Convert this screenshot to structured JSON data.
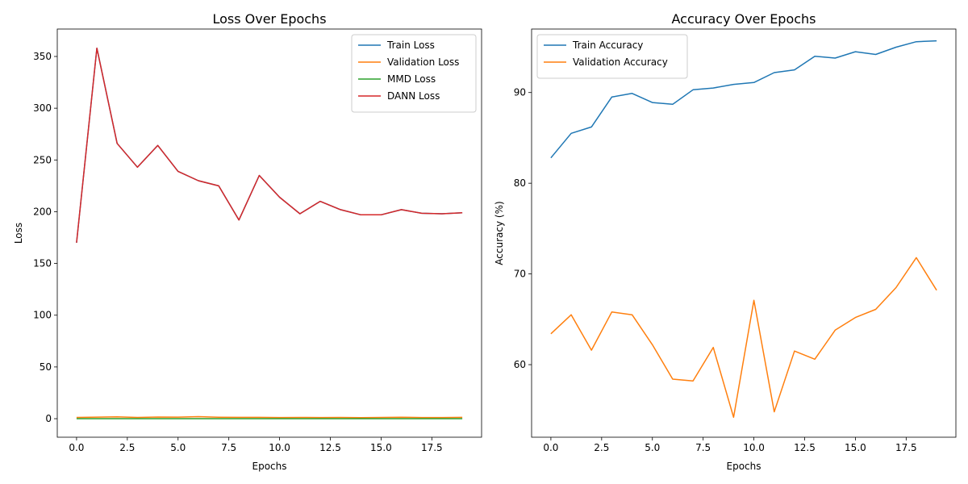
{
  "chart_data": [
    {
      "type": "line",
      "title": "Loss Over Epochs",
      "xlabel": "Epochs",
      "ylabel": "Loss",
      "xlim": [
        -0.95,
        19.95
      ],
      "ylim": [
        -17.9,
        376.5
      ],
      "x": [
        0,
        1,
        2,
        3,
        4,
        5,
        6,
        7,
        8,
        9,
        10,
        11,
        12,
        13,
        14,
        15,
        16,
        17,
        18,
        19
      ],
      "xticks": [
        0.0,
        2.5,
        5.0,
        7.5,
        10.0,
        12.5,
        15.0,
        17.5
      ],
      "xtick_labels": [
        "0.0",
        "2.5",
        "5.0",
        "7.5",
        "10.0",
        "12.5",
        "15.0",
        "17.5"
      ],
      "yticks": [
        0,
        50,
        100,
        150,
        200,
        250,
        300,
        350
      ],
      "ytick_labels": [
        "0",
        "50",
        "100",
        "150",
        "200",
        "250",
        "300",
        "350"
      ],
      "legend_position": "top-right",
      "series": [
        {
          "name": "Train Loss",
          "color": "#1f77b4",
          "values": [
            170,
            358,
            266,
            243,
            264,
            239,
            230,
            225,
            192,
            235,
            214,
            198,
            210,
            202,
            197,
            197,
            202,
            198.5,
            198,
            199
          ]
        },
        {
          "name": "Validation Loss",
          "color": "#ff7f0e",
          "values": [
            1.2,
            1.5,
            1.8,
            1.2,
            1.6,
            1.5,
            2.0,
            1.4,
            1.3,
            1.3,
            1.1,
            1.2,
            1.1,
            1.2,
            1.0,
            1.2,
            1.4,
            1.1,
            1.1,
            1.3
          ]
        },
        {
          "name": "MMD Loss",
          "color": "#2ca02c",
          "values": [
            0,
            0,
            0,
            0,
            0,
            0,
            0,
            0,
            0,
            0,
            0,
            0,
            0,
            0,
            0,
            0,
            0,
            0,
            0,
            0
          ]
        },
        {
          "name": "DANN Loss",
          "color": "#d62728",
          "values": [
            170,
            358,
            266,
            243,
            264,
            239,
            230,
            225,
            192,
            235,
            214,
            198,
            210,
            202,
            197,
            197,
            202,
            198.5,
            198,
            199
          ]
        }
      ]
    },
    {
      "type": "line",
      "title": "Accuracy Over Epochs",
      "xlabel": "Epochs",
      "ylabel": "Accuracy (%)",
      "xlim": [
        -0.95,
        19.95
      ],
      "ylim": [
        52.0,
        97.0
      ],
      "x": [
        0,
        1,
        2,
        3,
        4,
        5,
        6,
        7,
        8,
        9,
        10,
        11,
        12,
        13,
        14,
        15,
        16,
        17,
        18,
        19
      ],
      "xticks": [
        0.0,
        2.5,
        5.0,
        7.5,
        10.0,
        12.5,
        15.0,
        17.5
      ],
      "xtick_labels": [
        "0.0",
        "2.5",
        "5.0",
        "7.5",
        "10.0",
        "12.5",
        "15.0",
        "17.5"
      ],
      "yticks": [
        60,
        70,
        80,
        90
      ],
      "ytick_labels": [
        "60",
        "70",
        "80",
        "90"
      ],
      "legend_position": "top-left",
      "series": [
        {
          "name": "Train Accuracy",
          "color": "#1f77b4",
          "values": [
            82.8,
            85.5,
            86.2,
            89.5,
            89.9,
            88.9,
            88.7,
            90.3,
            90.5,
            90.9,
            91.1,
            92.2,
            92.5,
            94.0,
            93.8,
            94.5,
            94.2,
            95.0,
            95.6,
            95.7
          ]
        },
        {
          "name": "Validation Accuracy",
          "color": "#ff7f0e",
          "values": [
            63.4,
            65.5,
            61.6,
            65.8,
            65.5,
            62.2,
            58.4,
            58.2,
            61.9,
            54.2,
            67.1,
            54.8,
            61.5,
            60.6,
            63.8,
            65.2,
            66.1,
            68.5,
            71.8,
            68.2
          ]
        }
      ]
    }
  ]
}
